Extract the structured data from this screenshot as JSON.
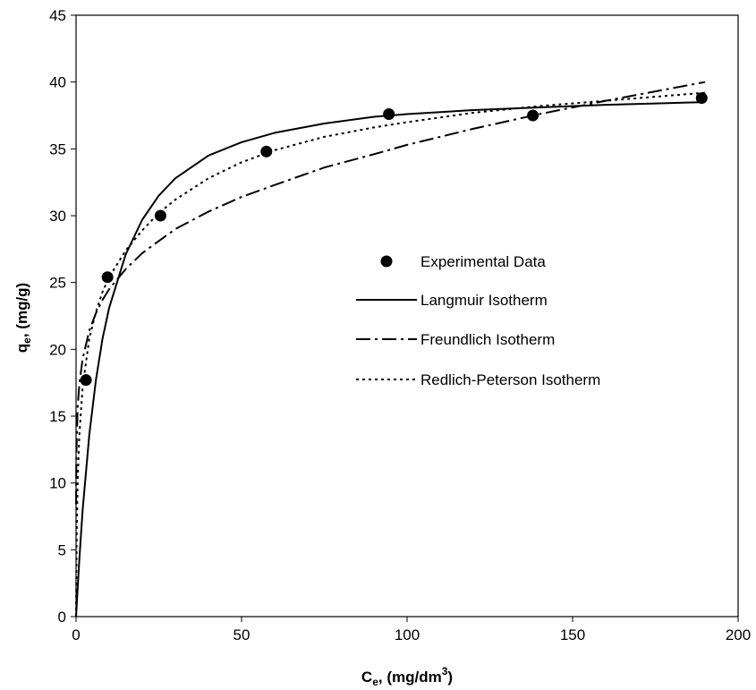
{
  "chart_data": {
    "type": "scatter",
    "xlabel": {
      "main": "C",
      "sub": "e",
      "rest": ", (mg/dm",
      "sup": "3",
      "end": ")"
    },
    "ylabel": {
      "main": "q",
      "sub": "e",
      "rest": ", (mg/g)"
    },
    "xlim": [
      0,
      200
    ],
    "ylim": [
      0,
      45
    ],
    "xticks": [
      0,
      50,
      100,
      150,
      200
    ],
    "yticks": [
      0,
      5,
      10,
      15,
      20,
      25,
      30,
      35,
      40,
      45
    ],
    "grid": false,
    "legend_position": "center-right",
    "series": [
      {
        "name": "Experimental Data",
        "kind": "points",
        "x": [
          3,
          9.5,
          25.5,
          57.5,
          94.5,
          138,
          189
        ],
        "y": [
          17.7,
          25.4,
          30.0,
          34.8,
          37.6,
          37.5,
          38.8
        ]
      },
      {
        "name": "Langmuir Isotherm",
        "kind": "line",
        "dash": "solid",
        "x": [
          0,
          1,
          2,
          4,
          6,
          8,
          10,
          15,
          20,
          25,
          30,
          40,
          50,
          60,
          75,
          90,
          100,
          120,
          140,
          160,
          175,
          190
        ],
        "y": [
          0,
          4.3,
          8.0,
          13.6,
          17.7,
          20.8,
          23.1,
          27.1,
          29.7,
          31.5,
          32.8,
          34.5,
          35.5,
          36.2,
          36.9,
          37.4,
          37.6,
          37.9,
          38.1,
          38.3,
          38.4,
          38.5
        ]
      },
      {
        "name": "Freundlich Isotherm",
        "kind": "line",
        "dash": "dashdot",
        "x": [
          0.01,
          0.1,
          0.5,
          1,
          2,
          4,
          6,
          8,
          10,
          15,
          20,
          30,
          40,
          50,
          60,
          75,
          90,
          100,
          120,
          140,
          160,
          175,
          190
        ],
        "y": [
          8.4,
          12.1,
          15.7,
          17.4,
          19.3,
          21.4,
          22.7,
          23.7,
          24.5,
          26.0,
          27.2,
          29.0,
          30.3,
          31.4,
          32.3,
          33.6,
          34.6,
          35.3,
          36.5,
          37.6,
          38.6,
          39.3,
          40.0
        ]
      },
      {
        "name": "Redlich-Peterson Isotherm",
        "kind": "line",
        "dash": "dotted",
        "x": [
          0,
          0.2,
          0.5,
          1,
          2,
          4,
          6,
          8,
          10,
          15,
          20,
          25,
          30,
          40,
          50,
          60,
          75,
          90,
          100,
          120,
          140,
          160,
          175,
          190
        ],
        "y": [
          0,
          6.0,
          10.2,
          13.6,
          17.2,
          20.8,
          22.8,
          24.3,
          25.4,
          27.4,
          28.9,
          30.2,
          31.2,
          32.8,
          34.0,
          34.9,
          35.9,
          36.6,
          37.0,
          37.7,
          38.2,
          38.6,
          38.9,
          39.2
        ]
      }
    ]
  }
}
